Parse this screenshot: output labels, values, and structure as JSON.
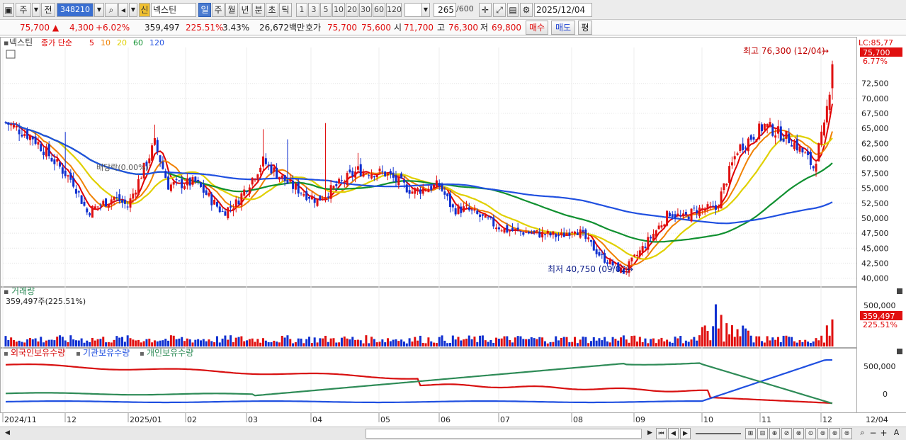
{
  "toolbar": {
    "period": "주",
    "prev_label": "전",
    "stock_code": "348210",
    "new_badge": "신",
    "stock_name": "넥스틴",
    "timeframes": [
      "일",
      "주",
      "월",
      "년",
      "분",
      "초",
      "틱"
    ],
    "intervals": [
      "1",
      "3",
      "5",
      "10",
      "20",
      "30",
      "60",
      "120"
    ],
    "count": "265",
    "count_max": "/600",
    "date": "2025/12/04"
  },
  "quote": {
    "price": "75,700",
    "change": "4,300",
    "change_pct": "+6.02%",
    "volume": "359,497",
    "volume_ratio": "225.51%",
    "turnover": "3.43%",
    "amount": "26,672백만",
    "ask_label": "호가",
    "ask": "75,700",
    "bid": "75,600",
    "open_label": "시",
    "open": "71,700",
    "high_label": "고",
    "high": "76,300",
    "low_label": "저",
    "low": "69,800",
    "buy_label": "매수",
    "sell_label": "매도",
    "eval_label": "평"
  },
  "price_panel": {
    "name": "넥스틴",
    "legend_prefix": "종가 단순",
    "ma_labels": [
      "5",
      "10",
      "20",
      "60",
      "120"
    ],
    "ma_colors": [
      "#e00000",
      "#f08000",
      "#e0d000",
      "#109030",
      "#2050e0"
    ],
    "lc_label": "LC:85,77",
    "current_tag": "75,700",
    "current_pct": "6.77%",
    "high_annotation": "최고 76,300 (12/04)",
    "low_annotation": "최저 40,750 (09/02)",
    "dividend_label": "배당락(0.00%)"
  },
  "volume_panel": {
    "title": "거래량",
    "value": "359,497주(225.51%)",
    "tag": "359,497",
    "tag_pct": "225.51%"
  },
  "holding_panel": {
    "legend": [
      "외국인보유수량",
      "기관보유수량",
      "개인보유수량"
    ],
    "colors": [
      "#d81010",
      "#2050e0",
      "#2e8b57"
    ]
  },
  "chart_data": {
    "type": "candlestick",
    "price_axis": [
      "72,500",
      "70,000",
      "67,500",
      "65,000",
      "62,500",
      "60,000",
      "57,500",
      "55,000",
      "52,500",
      "50,000",
      "47,500",
      "45,000",
      "42,500",
      "40,000"
    ],
    "price_ylim": [
      39000,
      78500
    ],
    "volume_axis": [
      "500,000"
    ],
    "holding_axis": [
      "500,000",
      "0"
    ],
    "x_labels": [
      "2024/11",
      "12",
      "2025/01",
      "02",
      "03",
      "04",
      "05",
      "06",
      "07",
      "08",
      "09",
      "10",
      "11",
      "12",
      "12/04"
    ],
    "close_anchors": [
      [
        0,
        66000
      ],
      [
        10,
        63500
      ],
      [
        25,
        56000
      ],
      [
        30,
        51000
      ],
      [
        40,
        53500
      ],
      [
        45,
        52000
      ],
      [
        55,
        62500
      ],
      [
        60,
        55500
      ],
      [
        70,
        56000
      ],
      [
        80,
        51000
      ],
      [
        85,
        52500
      ],
      [
        95,
        59500
      ],
      [
        105,
        55500
      ],
      [
        115,
        53000
      ],
      [
        130,
        58000
      ],
      [
        140,
        57500
      ],
      [
        150,
        54500
      ],
      [
        160,
        55500
      ],
      [
        165,
        51500
      ],
      [
        170,
        51500
      ],
      [
        180,
        49000
      ],
      [
        185,
        48000
      ],
      [
        195,
        47500
      ],
      [
        205,
        47000
      ],
      [
        210,
        48500
      ],
      [
        220,
        43500
      ],
      [
        228,
        41000
      ],
      [
        235,
        45000
      ],
      [
        245,
        51000
      ],
      [
        250,
        50000
      ],
      [
        255,
        51500
      ],
      [
        262,
        51500
      ],
      [
        270,
        61500
      ],
      [
        280,
        65500
      ],
      [
        290,
        63000
      ],
      [
        295,
        60500
      ],
      [
        298,
        58500
      ],
      [
        302,
        65000
      ],
      [
        304,
        71700
      ],
      [
        305,
        75700
      ]
    ]
  }
}
